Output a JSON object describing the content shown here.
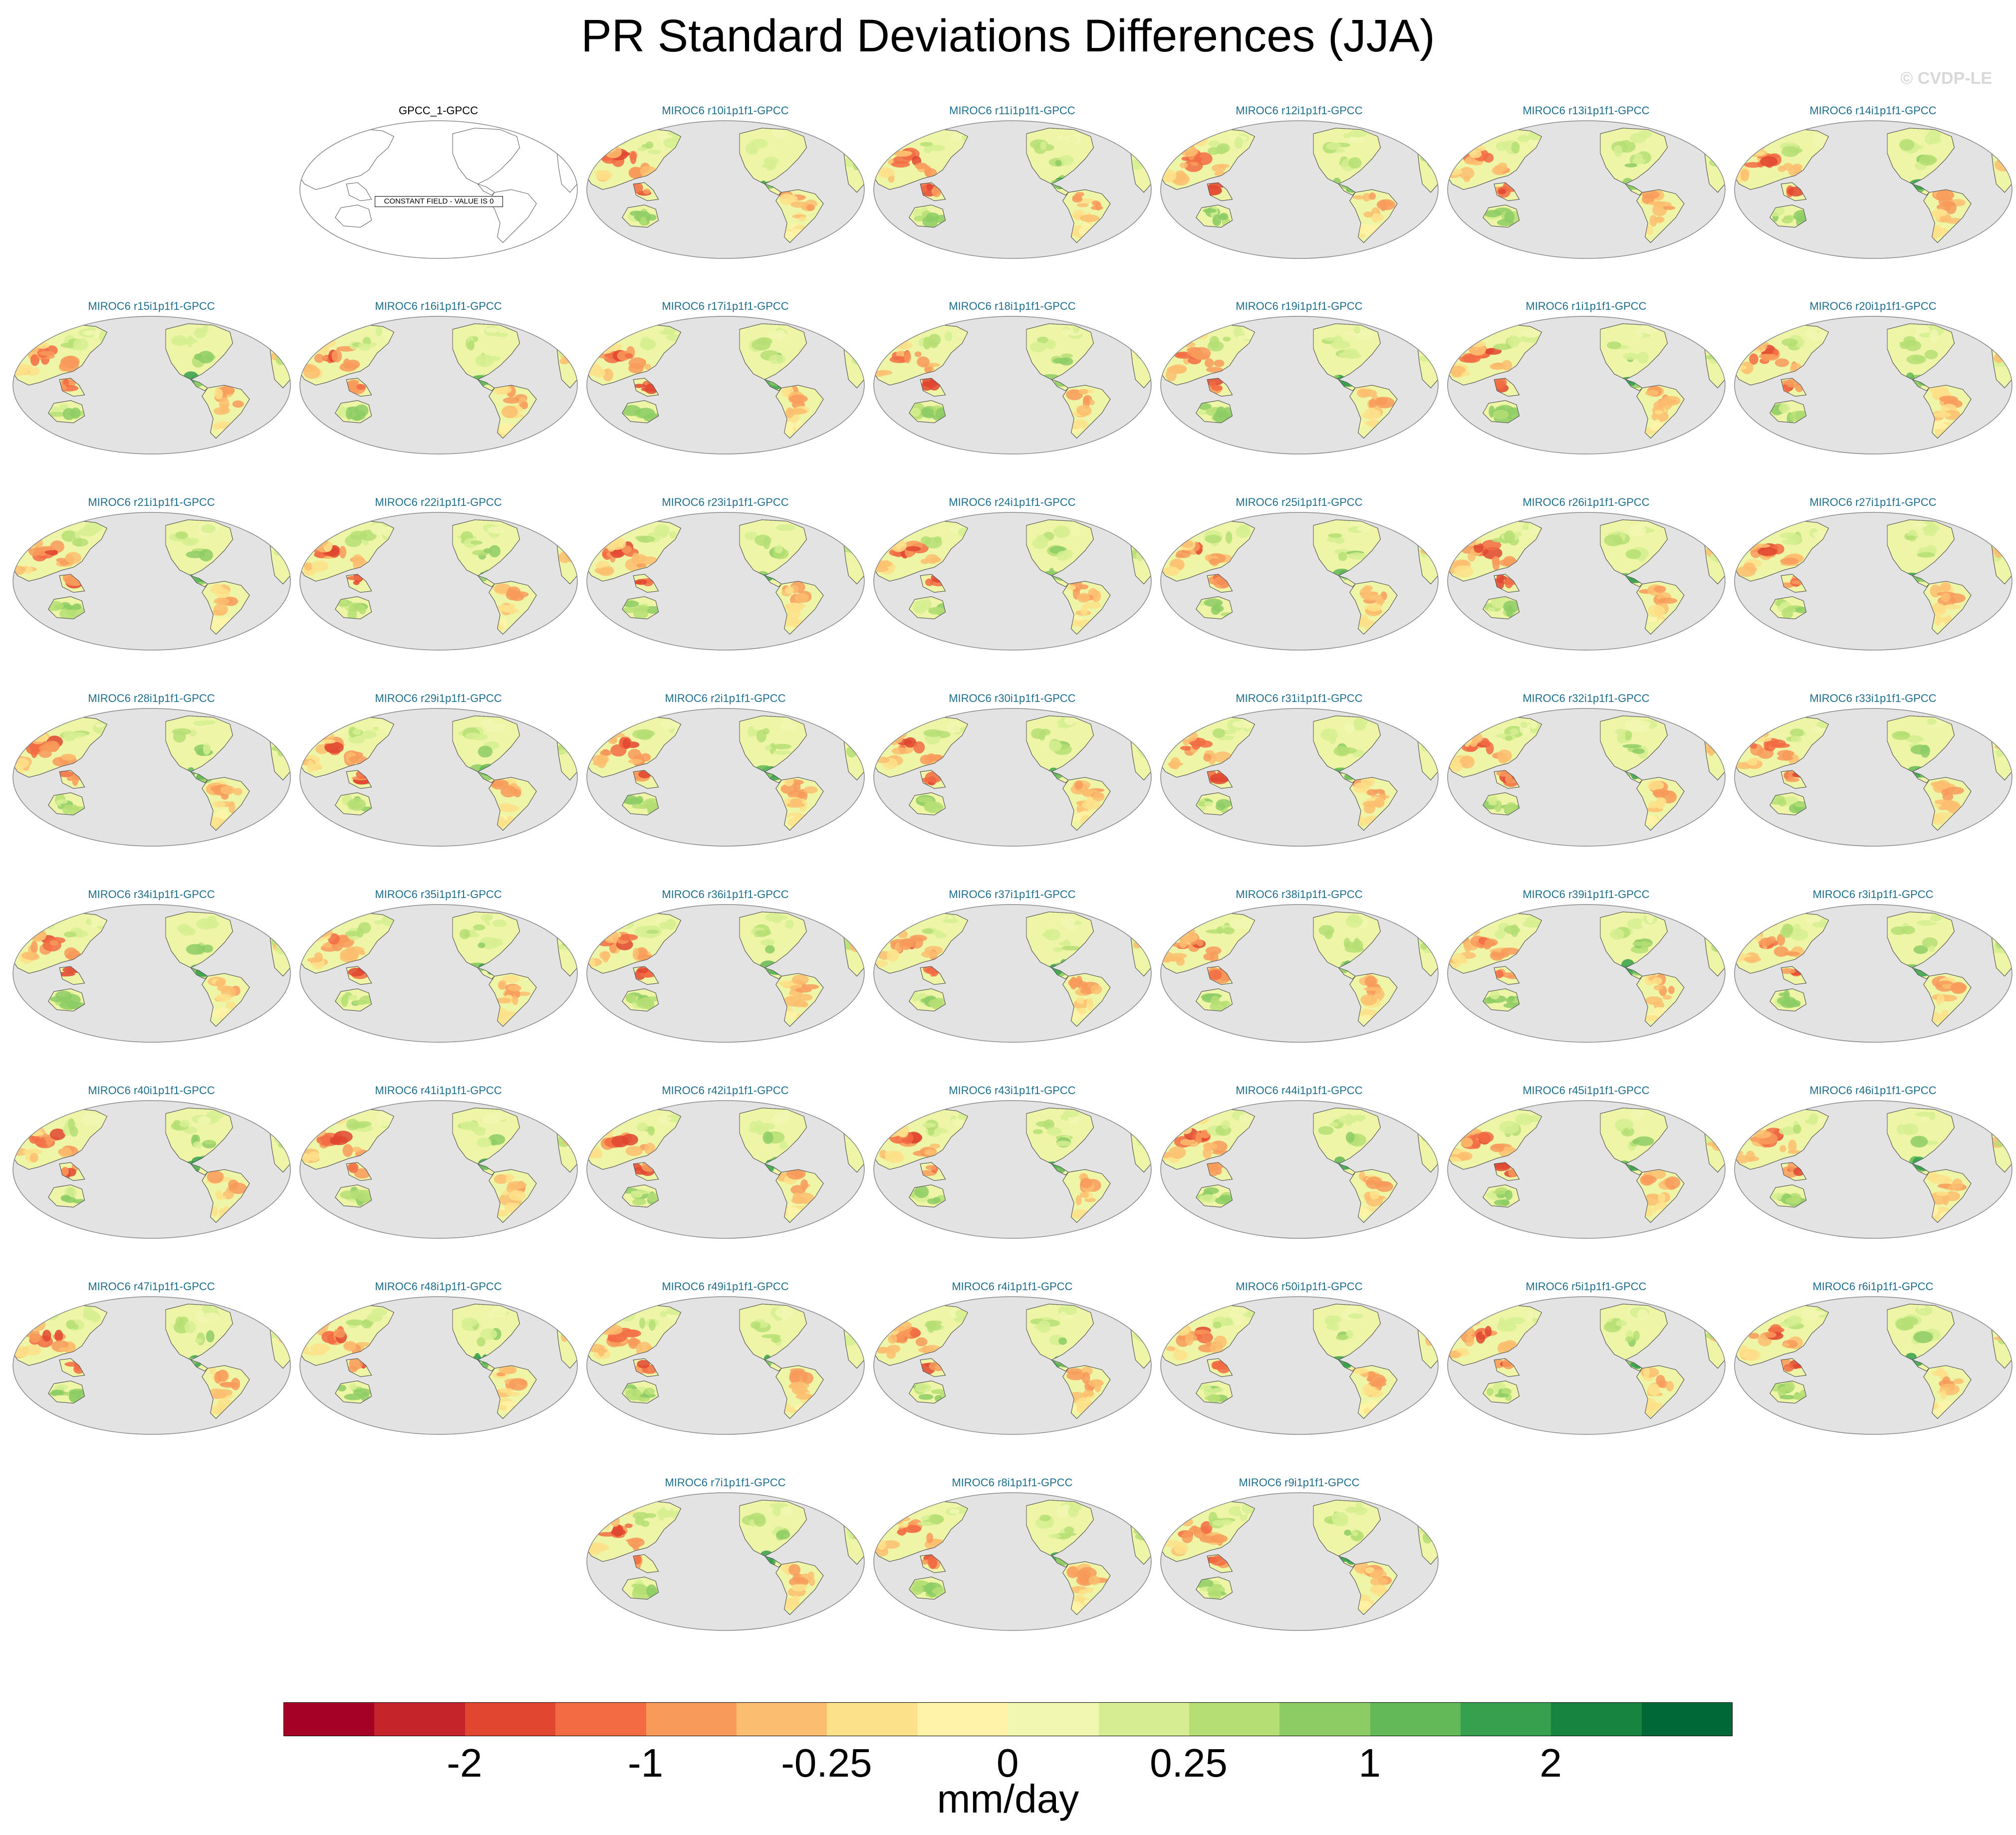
{
  "title": "PR Standard Deviations Differences (JJA)",
  "copyright": "© CVDP-LE",
  "reference_panel": {
    "label": "GPCC_1-GPCC",
    "note": "CONSTANT FIELD - VALUE IS 0"
  },
  "model_panels": [
    "MIROC6 r10i1p1f1-GPCC",
    "MIROC6 r11i1p1f1-GPCC",
    "MIROC6 r12i1p1f1-GPCC",
    "MIROC6 r13i1p1f1-GPCC",
    "MIROC6 r14i1p1f1-GPCC",
    "MIROC6 r15i1p1f1-GPCC",
    "MIROC6 r16i1p1f1-GPCC",
    "MIROC6 r17i1p1f1-GPCC",
    "MIROC6 r18i1p1f1-GPCC",
    "MIROC6 r19i1p1f1-GPCC",
    "MIROC6 r1i1p1f1-GPCC",
    "MIROC6 r20i1p1f1-GPCC",
    "MIROC6 r21i1p1f1-GPCC",
    "MIROC6 r22i1p1f1-GPCC",
    "MIROC6 r23i1p1f1-GPCC",
    "MIROC6 r24i1p1f1-GPCC",
    "MIROC6 r25i1p1f1-GPCC",
    "MIROC6 r26i1p1f1-GPCC",
    "MIROC6 r27i1p1f1-GPCC",
    "MIROC6 r28i1p1f1-GPCC",
    "MIROC6 r29i1p1f1-GPCC",
    "MIROC6 r2i1p1f1-GPCC",
    "MIROC6 r30i1p1f1-GPCC",
    "MIROC6 r31i1p1f1-GPCC",
    "MIROC6 r32i1p1f1-GPCC",
    "MIROC6 r33i1p1f1-GPCC",
    "MIROC6 r34i1p1f1-GPCC",
    "MIROC6 r35i1p1f1-GPCC",
    "MIROC6 r36i1p1f1-GPCC",
    "MIROC6 r37i1p1f1-GPCC",
    "MIROC6 r38i1p1f1-GPCC",
    "MIROC6 r39i1p1f1-GPCC",
    "MIROC6 r3i1p1f1-GPCC",
    "MIROC6 r40i1p1f1-GPCC",
    "MIROC6 r41i1p1f1-GPCC",
    "MIROC6 r42i1p1f1-GPCC",
    "MIROC6 r43i1p1f1-GPCC",
    "MIROC6 r44i1p1f1-GPCC",
    "MIROC6 r45i1p1f1-GPCC",
    "MIROC6 r46i1p1f1-GPCC",
    "MIROC6 r47i1p1f1-GPCC",
    "MIROC6 r48i1p1f1-GPCC",
    "MIROC6 r49i1p1f1-GPCC",
    "MIROC6 r4i1p1f1-GPCC",
    "MIROC6 r50i1p1f1-GPCC",
    "MIROC6 r5i1p1f1-GPCC",
    "MIROC6 r6i1p1f1-GPCC",
    "MIROC6 r7i1p1f1-GPCC",
    "MIROC6 r8i1p1f1-GPCC",
    "MIROC6 r9i1p1f1-GPCC"
  ],
  "colorbar": {
    "colors": [
      "#a50026",
      "#c5242a",
      "#e04630",
      "#f26b43",
      "#f89a5a",
      "#fbbd6f",
      "#fde08a",
      "#fef3a8",
      "#f1f7b0",
      "#d6ee91",
      "#b5de74",
      "#8dcc65",
      "#63b958",
      "#36a04e",
      "#178540",
      "#006837"
    ],
    "tick_labels": [
      "-2",
      "-1",
      "-0.25",
      "0",
      "0.25",
      "1",
      "2"
    ],
    "units": "mm/day"
  },
  "map_colors": {
    "ocean": "#e3e3e3",
    "land_base": "#eef5a6",
    "coast": "#555555"
  }
}
